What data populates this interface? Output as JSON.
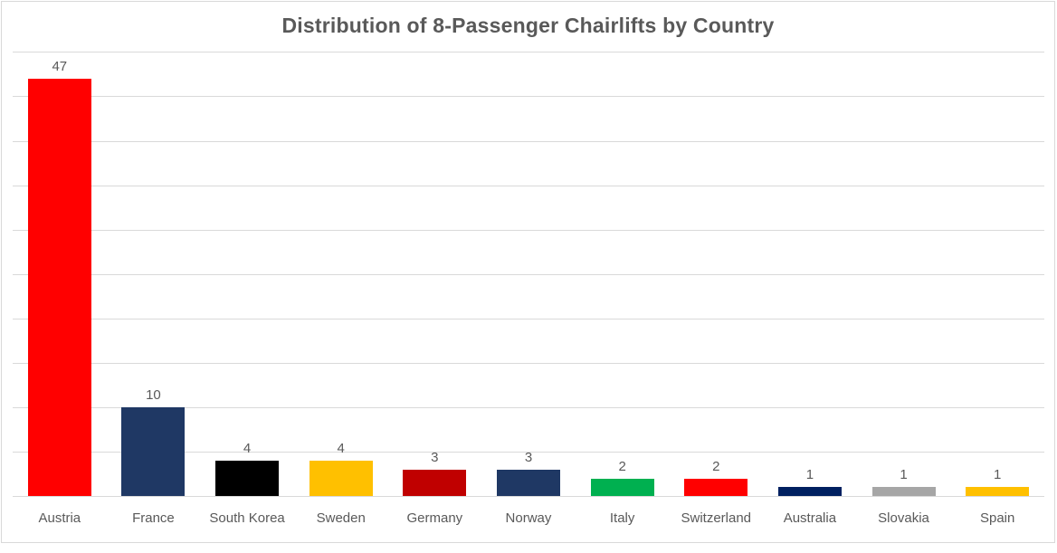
{
  "chart_data": {
    "type": "bar",
    "title": "Distribution of 8-Passenger Chairlifts by Country",
    "categories": [
      "Austria",
      "France",
      "South Korea",
      "Sweden",
      "Germany",
      "Norway",
      "Italy",
      "Switzerland",
      "Australia",
      "Slovakia",
      "Spain"
    ],
    "values": [
      47,
      10,
      4,
      4,
      3,
      3,
      2,
      2,
      1,
      1,
      1
    ],
    "bar_colors": [
      "#FF0000",
      "#1F3864",
      "#000000",
      "#FFC000",
      "#C00000",
      "#1F3864",
      "#00B050",
      "#FF0000",
      "#002060",
      "#A6A6A6",
      "#FFC000"
    ],
    "data_labels_shown": true,
    "xlabel": "",
    "ylabel": "",
    "ylim": [
      0,
      50
    ],
    "gridline_step": 5,
    "grid": "horizontal",
    "legend": "none",
    "y_axis_tick_labels_shown": false
  },
  "colors": {
    "title_text": "#595959",
    "label_text": "#595959",
    "gridline": "#D9D9D9",
    "chart_border": "#D9D9D9",
    "background": "#FFFFFF"
  }
}
